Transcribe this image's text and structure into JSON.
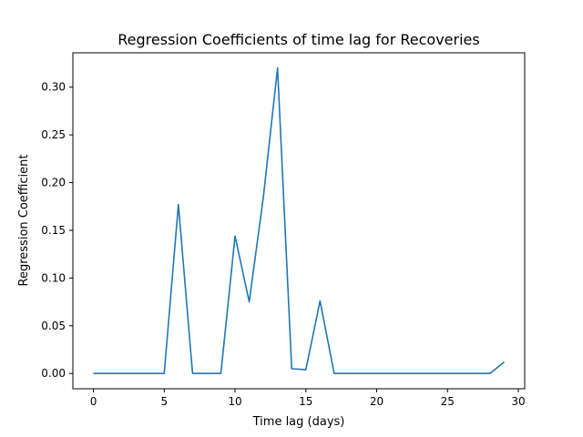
{
  "chart_data": {
    "type": "line",
    "title": "Regression Coefficients of time lag for Recoveries",
    "xlabel": "Time lag (days)",
    "ylabel": "Regression Coefficient",
    "xlim": [
      -1.45,
      30.45
    ],
    "ylim": [
      -0.016,
      0.336
    ],
    "xticks": [
      0,
      5,
      10,
      15,
      20,
      25,
      30
    ],
    "xtick_labels": [
      "0",
      "5",
      "10",
      "15",
      "20",
      "25",
      "30"
    ],
    "yticks": [
      0.0,
      0.05,
      0.1,
      0.15,
      0.2,
      0.25,
      0.3
    ],
    "ytick_labels": [
      "0.00",
      "0.05",
      "0.10",
      "0.15",
      "0.20",
      "0.25",
      "0.30"
    ],
    "grid": false,
    "series": [
      {
        "color": "#1f77b4",
        "x": [
          0,
          1,
          2,
          3,
          4,
          5,
          6,
          7,
          8,
          9,
          10,
          11,
          12,
          13,
          14,
          15,
          16,
          17,
          18,
          19,
          20,
          21,
          22,
          23,
          24,
          25,
          26,
          27,
          28,
          29
        ],
        "values": [
          0,
          0,
          0,
          0,
          0,
          0,
          0.177,
          0,
          0,
          0,
          0.144,
          0.075,
          0.185,
          0.32,
          0.005,
          0.004,
          0.076,
          0,
          0,
          0,
          0,
          0,
          0,
          0,
          0,
          0,
          0,
          0,
          0,
          0.012
        ]
      }
    ]
  }
}
